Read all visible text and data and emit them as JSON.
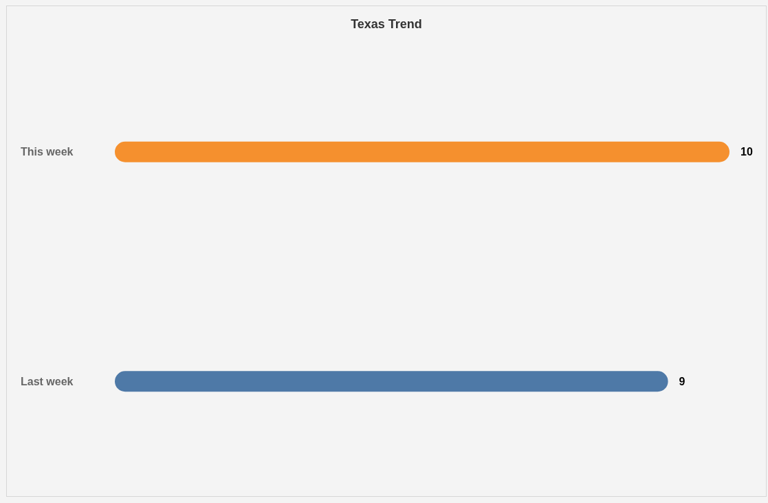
{
  "chart_data": {
    "type": "bar",
    "orientation": "horizontal",
    "title": "Texas Trend",
    "categories": [
      "This week",
      "Last week"
    ],
    "values": [
      10,
      9
    ],
    "colors": [
      "#f5902e",
      "#4e79a7"
    ],
    "data_labels": true
  }
}
